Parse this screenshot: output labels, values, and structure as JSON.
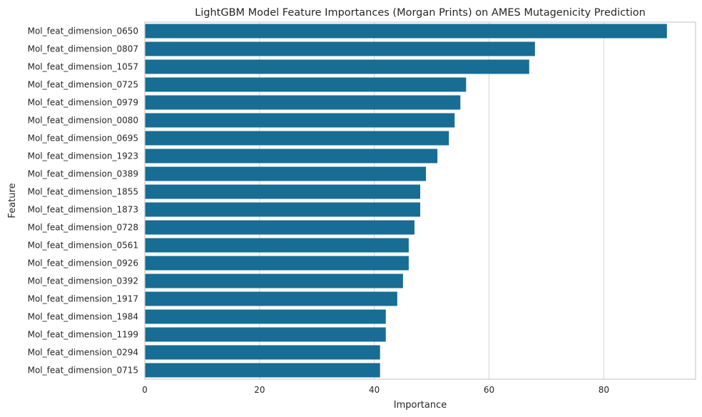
{
  "chart_data": {
    "type": "bar",
    "orientation": "horizontal",
    "title": "LightGBM Model Feature Importances (Morgan Prints) on AMES Mutagenicity Prediction",
    "xlabel": "Importance",
    "ylabel": "Feature",
    "xlim": [
      0,
      96
    ],
    "xticks": [
      0,
      20,
      40,
      60,
      80
    ],
    "grid": "vertical",
    "bar_color": "#176d94",
    "categories": [
      "Mol_feat_dimension_0650",
      "Mol_feat_dimension_0807",
      "Mol_feat_dimension_1057",
      "Mol_feat_dimension_0725",
      "Mol_feat_dimension_0979",
      "Mol_feat_dimension_0080",
      "Mol_feat_dimension_0695",
      "Mol_feat_dimension_1923",
      "Mol_feat_dimension_0389",
      "Mol_feat_dimension_1855",
      "Mol_feat_dimension_1873",
      "Mol_feat_dimension_0728",
      "Mol_feat_dimension_0561",
      "Mol_feat_dimension_0926",
      "Mol_feat_dimension_0392",
      "Mol_feat_dimension_1917",
      "Mol_feat_dimension_1984",
      "Mol_feat_dimension_1199",
      "Mol_feat_dimension_0294",
      "Mol_feat_dimension_0715"
    ],
    "values": [
      91,
      68,
      67,
      56,
      55,
      54,
      53,
      51,
      49,
      48,
      48,
      47,
      46,
      46,
      45,
      44,
      42,
      42,
      41,
      41
    ]
  }
}
